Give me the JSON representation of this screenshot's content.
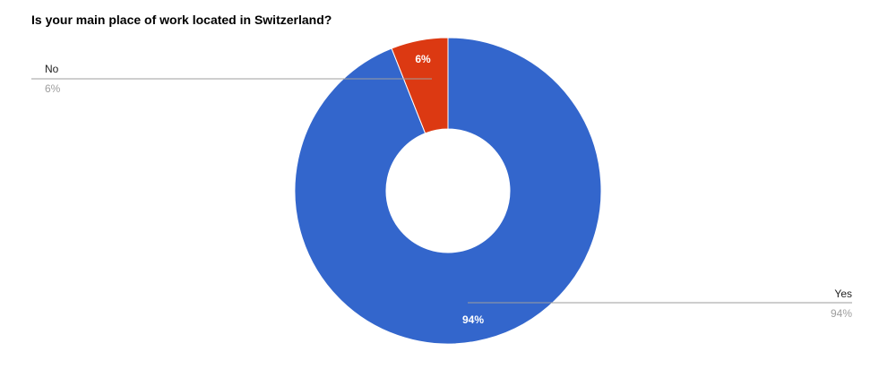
{
  "chart_data": {
    "type": "pie",
    "donut": true,
    "title": "Is your main place of work located in Switzerland?",
    "categories": [
      "Yes",
      "No"
    ],
    "values": [
      94,
      6
    ],
    "slice_labels": [
      "94%",
      "6%"
    ],
    "legend_values": [
      "94%",
      "6%"
    ],
    "colors": [
      "#3366cc",
      "#dc3912"
    ],
    "legend": "outside-labels-with-leader-lines"
  },
  "colors": {
    "label_text": "#222222",
    "sub_label_text": "#9e9e9e",
    "leader_line": "#9e9e9e",
    "slice_label_text": "#ffffff",
    "slice_border": "#ffffff"
  }
}
